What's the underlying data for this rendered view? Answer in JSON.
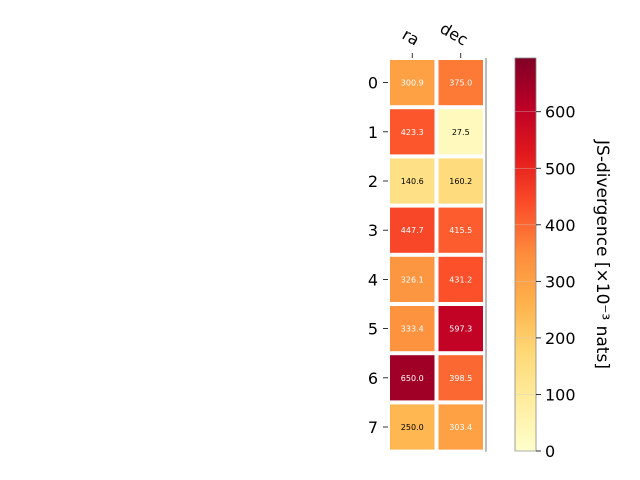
{
  "chart_data": {
    "type": "heatmap",
    "columns": [
      "ra",
      "dec"
    ],
    "rows": [
      "0",
      "1",
      "2",
      "3",
      "4",
      "5",
      "6",
      "7"
    ],
    "values": [
      [
        300.9,
        375.0
      ],
      [
        423.3,
        27.5
      ],
      [
        140.6,
        160.2
      ],
      [
        447.7,
        415.5
      ],
      [
        326.1,
        431.2
      ],
      [
        333.4,
        597.3
      ],
      [
        650.0,
        398.5
      ],
      [
        250.0,
        303.4
      ]
    ],
    "value_labels": [
      [
        "300.9",
        "375.0"
      ],
      [
        "423.3",
        "27.5"
      ],
      [
        "140.6",
        "160.2"
      ],
      [
        "447.7",
        "415.5"
      ],
      [
        "326.1",
        "431.2"
      ],
      [
        "333.4",
        "597.3"
      ],
      [
        "650.0",
        "398.5"
      ],
      [
        "250.0",
        "303.4"
      ]
    ],
    "colorbar": {
      "label": "JS-divergence [×10⁻³ nats]",
      "range": [
        0,
        695
      ],
      "ticks": [
        0,
        100,
        200,
        300,
        400,
        500,
        600
      ],
      "tick_labels": [
        "0",
        "100",
        "200",
        "300",
        "400",
        "500",
        "600"
      ],
      "colormap": "YlOrRd"
    },
    "colors": {
      "colormap_stops": [
        "#ffffcc",
        "#ffeda0",
        "#fed976",
        "#feb24c",
        "#fd8d3c",
        "#fc4e2a",
        "#e31a1c",
        "#bd0026",
        "#800026"
      ]
    }
  }
}
